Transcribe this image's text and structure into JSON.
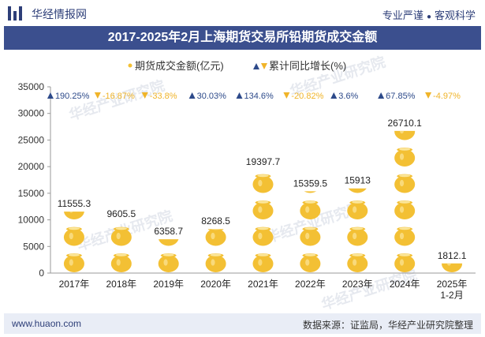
{
  "header": {
    "brand": "华经情报网",
    "slogan_left": "专业严谨",
    "slogan_right": "客观科学"
  },
  "footer": {
    "url": "www.huaon.com",
    "source": "数据来源：证监局，华经产业研究院整理"
  },
  "watermark": "华经产业研究院",
  "colors": {
    "gold": "#f3c034",
    "gold_light": "#fbe69a",
    "up": "#2d4a8a",
    "down": "#f0b429",
    "title_bg": "#3b4f8e"
  },
  "chart_data": {
    "type": "bar",
    "title": "2017-2025年2月上海期货交易所铅期货成交金额",
    "legend": {
      "bar": "期货成交金额(亿元)",
      "growth": "累计同比增长(%)"
    },
    "categories": [
      "2017年",
      "2018年",
      "2019年",
      "2020年",
      "2021年",
      "2022年",
      "2023年",
      "2024年",
      "2025年 1-2月"
    ],
    "values": [
      11555.3,
      9605.5,
      6358.7,
      8268.5,
      19397.7,
      15359.5,
      15913,
      26710.1,
      1812.1
    ],
    "value_labels": [
      "11555.3",
      "9605.5",
      "6358.7",
      "8268.5",
      "19397.7",
      "15359.5",
      "15913",
      "26710.1",
      "1812.1"
    ],
    "growth_labels": [
      "190.25%",
      "-16.87%",
      "-33.8%",
      "30.03%",
      "134.6%",
      "-20.82%",
      "3.6%",
      "67.85%",
      "-4.97%"
    ],
    "growth_direction": [
      "up",
      "down",
      "down",
      "up",
      "up",
      "down",
      "up",
      "up",
      "down"
    ],
    "ylim": [
      0,
      35000
    ],
    "yticks": [
      0,
      5000,
      10000,
      15000,
      20000,
      25000,
      30000,
      35000
    ],
    "ytick_labels": [
      "0",
      "5000",
      "10000",
      "15000",
      "20000",
      "25000",
      "30000",
      "35000"
    ]
  }
}
